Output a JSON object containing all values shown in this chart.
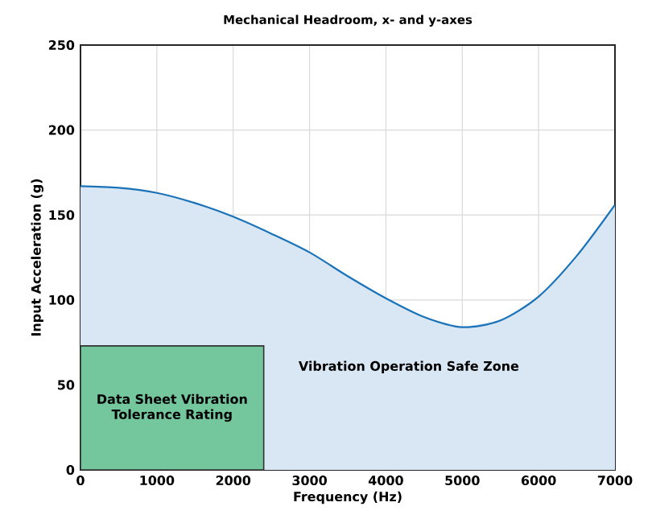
{
  "chart_data": {
    "type": "area",
    "title": "Mechanical Headroom, x- and y-axes",
    "xlabel": "Frequency (Hz)",
    "ylabel": "Input Acceleration (g)",
    "series": [
      {
        "name": "Vibration Operation Safe Zone",
        "color": "#1a72b8",
        "x": [
          0,
          500,
          1000,
          1500,
          2000,
          2500,
          3000,
          3500,
          4000,
          4500,
          5000,
          5500,
          6000,
          6500,
          7000
        ],
        "values": [
          167,
          166,
          163,
          157,
          149,
          139,
          128,
          114,
          101,
          90,
          84,
          88,
          102,
          126,
          156
        ]
      },
      {
        "name": "Data Sheet Vibration Tolerance Rating",
        "color": "#74c69d",
        "x": [
          0,
          2400
        ],
        "values": [
          73,
          73
        ]
      }
    ],
    "xlim": [
      0,
      7000
    ],
    "ylim": [
      0,
      250
    ],
    "xticks": [
      0,
      1000,
      2000,
      3000,
      4000,
      5000,
      6000,
      7000
    ],
    "yticks": [
      0,
      50,
      100,
      150,
      200,
      250
    ],
    "grid": true
  }
}
